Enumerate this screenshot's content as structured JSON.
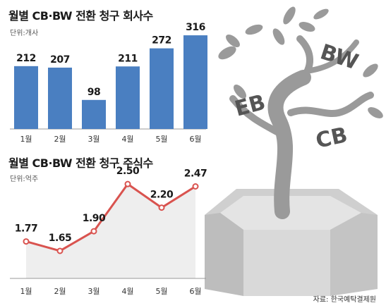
{
  "source": "자료: 한국예탁결제원",
  "illustration": {
    "labels": [
      "BW",
      "EB",
      "CB"
    ]
  },
  "colors": {
    "bar": "#4a7fc1",
    "line": "#d9534f",
    "line_fill": "#eeeeee",
    "tree": "#9a9a9a",
    "pot": "#d6d6d6"
  },
  "chart_data": [
    {
      "type": "bar",
      "title": "월별 CB·BW 전환 청구 회사수",
      "unit": "단위:개사",
      "categories": [
        "1월",
        "2월",
        "3월",
        "4월",
        "5월",
        "6월"
      ],
      "values": [
        212,
        207,
        98,
        211,
        272,
        316
      ],
      "ylim": [
        0,
        340
      ],
      "grid": false,
      "legend": "none"
    },
    {
      "type": "area",
      "title": "월별 CB·BW 전환 청구 주식수",
      "unit": "단위:억주",
      "categories": [
        "1월",
        "2월",
        "3월",
        "4월",
        "5월",
        "6월"
      ],
      "values": [
        1.77,
        1.65,
        1.9,
        2.5,
        2.2,
        2.47
      ],
      "value_labels": [
        "1.77",
        "1.65",
        "1.90",
        "2.50",
        "2.20",
        "2.47"
      ],
      "ylim": [
        1.3,
        2.6
      ],
      "grid": false,
      "legend": "none"
    }
  ]
}
